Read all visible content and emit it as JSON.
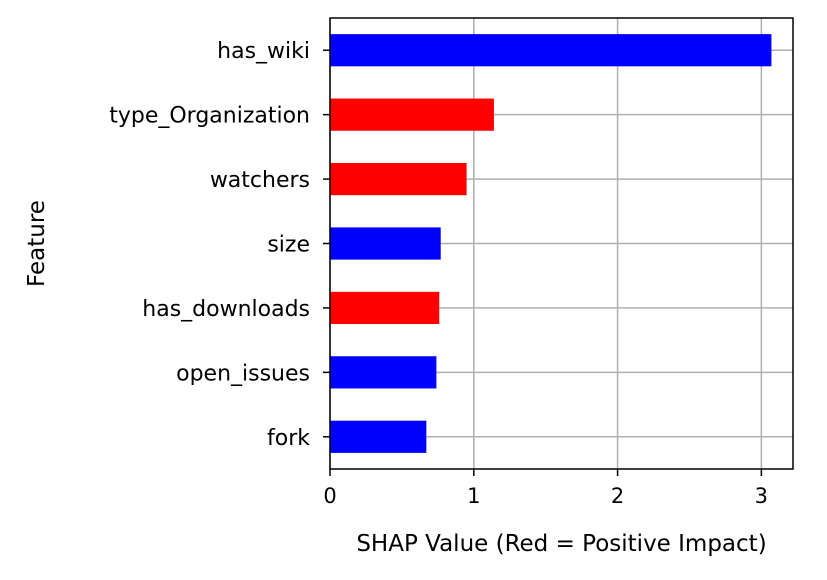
{
  "chart_data": {
    "type": "bar",
    "orientation": "horizontal",
    "title": "",
    "xlabel": "SHAP Value (Red = Positive Impact)",
    "ylabel": "Feature",
    "categories": [
      "has_wiki",
      "type_Organization",
      "watchers",
      "size",
      "has_downloads",
      "open_issues",
      "fork"
    ],
    "values": [
      3.07,
      1.14,
      0.95,
      0.77,
      0.76,
      0.74,
      0.67
    ],
    "bar_colors": [
      "#0000ff",
      "#ff0000",
      "#ff0000",
      "#0000ff",
      "#ff0000",
      "#0000ff",
      "#0000ff"
    ],
    "xlim": [
      0,
      3.22
    ],
    "xticks": [
      0,
      1,
      2,
      3
    ],
    "xtick_labels": [
      "0",
      "1",
      "2",
      "3"
    ],
    "grid": true,
    "legend": false
  },
  "colors": {
    "positive": "#ff0000",
    "negative": "#0000ff",
    "grid": "#b0b0b0",
    "axis": "#000000"
  }
}
